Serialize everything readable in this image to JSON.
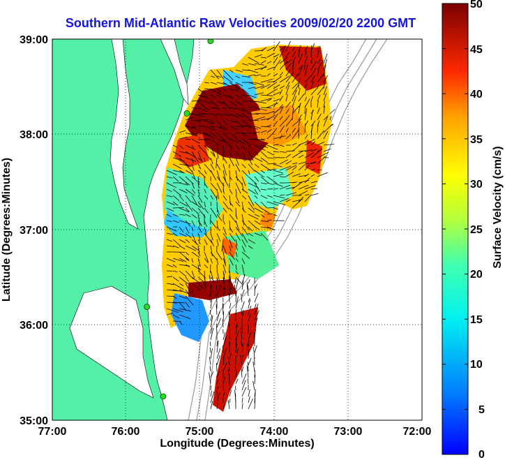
{
  "title": "Southern Mid-Atlantic Raw Velocities 2009/02/20 2200 GMT",
  "x_axis": {
    "label": "Longitude (Degrees:Minutes)",
    "ticks": [
      "77:00",
      "76:00",
      "75:00",
      "74:00",
      "73:00",
      "72:00"
    ]
  },
  "y_axis": {
    "label": "Latitude (Degrees:Minutes)",
    "ticks": [
      "39:00",
      "38:00",
      "37:00",
      "36:00",
      "35:00"
    ]
  },
  "colorbar": {
    "label": "Surface Velocity (cm/s)",
    "ticks": [
      "50",
      "45",
      "40",
      "35",
      "30",
      "25",
      "20",
      "15",
      "10",
      "5",
      "0"
    ],
    "min": 0,
    "max": 50,
    "colormap": "jet"
  },
  "colors": {
    "title": "#1414e6",
    "land": "#55f0a8",
    "ocean": "#ffffff",
    "bathymetry": "#9a9a9a",
    "radar_site": "#22dd22",
    "grid": "#000000"
  },
  "map_extent": {
    "lon_min": -77,
    "lon_max": -72,
    "lat_min": 35,
    "lat_max": 39
  },
  "radar_sites": [
    {
      "lon": -74.86,
      "lat": 38.98
    },
    {
      "lon": -75.18,
      "lat": 38.22
    },
    {
      "lon": -75.72,
      "lat": 36.19
    },
    {
      "lon": -75.5,
      "lat": 35.25
    }
  ]
}
